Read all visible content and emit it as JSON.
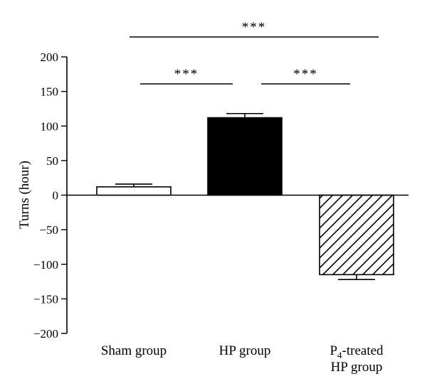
{
  "chart_data": {
    "type": "bar",
    "ylabel": "Turns (hour)",
    "xlabel": "",
    "ylim": [
      -200,
      200
    ],
    "yticks": [
      200,
      150,
      100,
      50,
      0,
      -50,
      -100,
      -150,
      -200
    ],
    "ytick_labels": [
      "200",
      "150",
      "100",
      "50",
      "0",
      "−50",
      "−100",
      "−150",
      "−200"
    ],
    "categories": [
      {
        "line1": "Sham group",
        "line1_sub": "",
        "line1_rest": "",
        "line2": ""
      },
      {
        "line1": "HP group",
        "line1_sub": "",
        "line1_rest": "",
        "line2": ""
      },
      {
        "line1": "P",
        "line1_sub": "4",
        "line1_rest": "-treated",
        "line2": "HP group"
      }
    ],
    "values": [
      12,
      112,
      -115
    ],
    "errors": [
      4,
      6,
      7
    ],
    "fills": [
      "white",
      "black",
      "hatch"
    ],
    "significance": [
      {
        "from": 0,
        "to": 1,
        "label": "***"
      },
      {
        "from": 1,
        "to": 2,
        "label": "***"
      },
      {
        "from": 0,
        "to": 2,
        "label": "***"
      }
    ],
    "colors": {
      "bar_outline": "#000000",
      "solid_fill": "#000000",
      "empty_fill": "#ffffff"
    }
  }
}
